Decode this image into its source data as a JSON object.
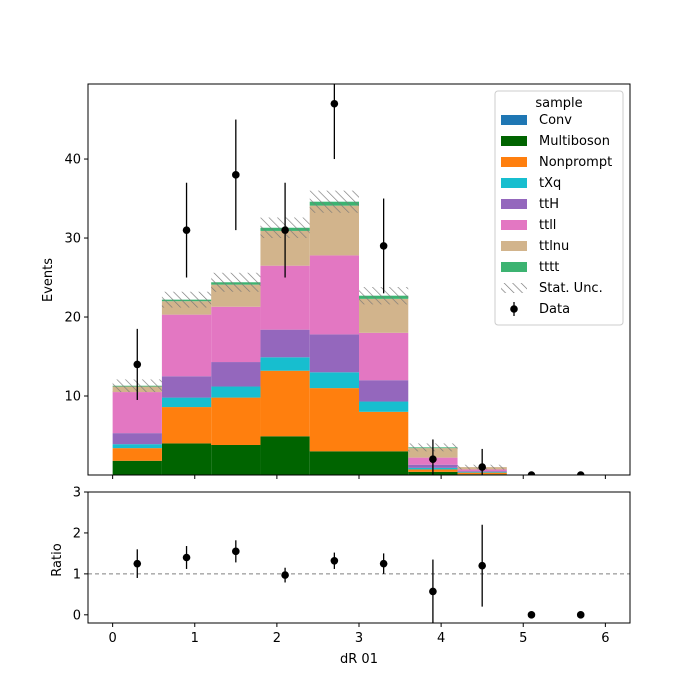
{
  "chart_data": [
    {
      "type": "bar",
      "stacked": true,
      "ylabel": "Events",
      "ylim": [
        0,
        49.5
      ],
      "yticks": [
        10,
        20,
        30,
        40
      ],
      "xlim": [
        -0.3,
        6.3
      ],
      "bin_edges": [
        0,
        0.6,
        1.2,
        1.8,
        2.4,
        3.0,
        3.6,
        4.2,
        4.8,
        5.4,
        6.0
      ],
      "legend_title": "sample",
      "legend_position": "top-right",
      "stat_unc_label": "Stat. Unc.",
      "data_label": "Data",
      "series": [
        {
          "name": "Conv",
          "color": "#1f77b4",
          "values": [
            0,
            0,
            0,
            0,
            0,
            0,
            0,
            0,
            0,
            0
          ]
        },
        {
          "name": "Multiboson",
          "color": "#006400",
          "values": [
            1.8,
            4.0,
            3.8,
            4.9,
            3.0,
            3.0,
            0.4,
            0.1,
            0,
            0
          ]
        },
        {
          "name": "Nonprompt",
          "color": "#ff7f0e",
          "values": [
            1.6,
            4.6,
            6.0,
            8.3,
            8.0,
            5.0,
            0.3,
            0.2,
            0,
            0
          ]
        },
        {
          "name": "tXq",
          "color": "#17becf",
          "values": [
            0.5,
            1.2,
            1.4,
            1.7,
            2.0,
            1.3,
            0.2,
            0.1,
            0,
            0
          ]
        },
        {
          "name": "ttH",
          "color": "#9467bd",
          "values": [
            1.4,
            2.7,
            3.1,
            3.5,
            4.8,
            2.7,
            0.4,
            0.1,
            0,
            0
          ]
        },
        {
          "name": "ttll",
          "color": "#e377c2",
          "values": [
            5.2,
            7.8,
            7.0,
            8.1,
            10.0,
            6.0,
            0.9,
            0.2,
            0,
            0
          ]
        },
        {
          "name": "ttlnu",
          "color": "#d2b48c",
          "values": [
            0.7,
            1.7,
            2.8,
            4.4,
            6.3,
            4.3,
            1.2,
            0.3,
            0,
            0
          ]
        },
        {
          "name": "tttt",
          "color": "#3cb371",
          "values": [
            0.1,
            0.2,
            0.3,
            0.4,
            0.5,
            0.4,
            0.1,
            0,
            0,
            0
          ]
        }
      ],
      "stat_unc": [
        0.8,
        1.0,
        1.2,
        1.3,
        1.4,
        1.1,
        0.5,
        0.3,
        0,
        0
      ],
      "data": {
        "x": [
          0.3,
          0.9,
          1.5,
          2.1,
          2.7,
          3.3,
          3.9,
          4.5,
          5.1,
          5.7
        ],
        "y": [
          14,
          31,
          38,
          31,
          47,
          29,
          2,
          1,
          0,
          0
        ],
        "err": [
          4.5,
          6.0,
          7.0,
          6.0,
          7.0,
          6.0,
          2.5,
          2.3,
          0,
          0
        ]
      }
    },
    {
      "type": "scatter",
      "ylabel": "Ratio",
      "xlabel": "dR 01",
      "ylim": [
        -0.2,
        3.0
      ],
      "yticks": [
        0,
        1,
        2,
        3
      ],
      "xticks": [
        0,
        1,
        2,
        3,
        4,
        5,
        6
      ],
      "reference_line": 1,
      "x": [
        0.3,
        0.9,
        1.5,
        2.1,
        2.7,
        3.3,
        3.9,
        4.5,
        5.1,
        5.7
      ],
      "y": [
        1.25,
        1.4,
        1.55,
        0.97,
        1.32,
        1.25,
        0.57,
        1.2,
        0,
        0
      ],
      "err": [
        0.35,
        0.28,
        0.27,
        0.18,
        0.2,
        0.25,
        0.78,
        1.0,
        0,
        0
      ]
    }
  ]
}
